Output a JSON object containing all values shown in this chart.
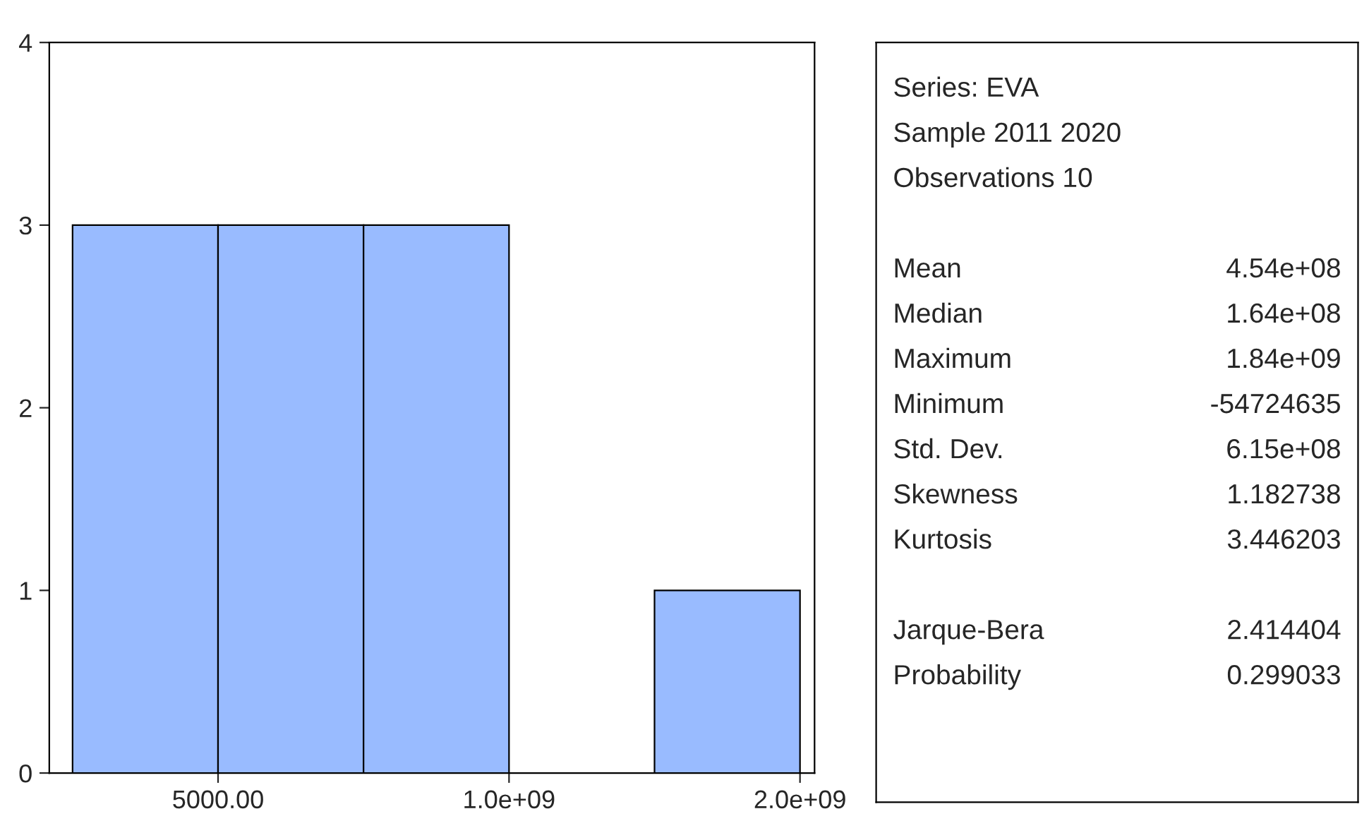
{
  "chart_data": [
    {
      "type": "histogram",
      "bins": [
        -500000000,
        5000,
        500000000,
        1000000000,
        1500000000,
        2000000000
      ],
      "values": [
        3,
        3,
        3,
        0,
        1
      ],
      "color": "#99bbff",
      "xlim": [
        -580000000,
        2050000000
      ],
      "xticks": [
        {
          "value": 5000,
          "label": "5000.00"
        },
        {
          "value": 1000000000,
          "label": "1.0e+09"
        },
        {
          "value": 2000000000,
          "label": "2.0e+09"
        }
      ],
      "ylim": [
        0,
        4
      ],
      "yticks": [
        0,
        1,
        2,
        3,
        4
      ],
      "grid": false,
      "legend": false
    },
    {
      "type": "other",
      "annotations": [
        "Series: EVA",
        "Sample 2011 2020",
        "Observations 10",
        "Mean",
        "4.54e+08",
        "Median",
        "1.64e+08",
        "Maximum",
        "1.84e+09",
        "Minimum",
        "-54724635",
        "Std. Dev.",
        "6.15e+08",
        "Skewness",
        "1.182738",
        "Kurtosis",
        "3.446203",
        "Jarque-Bera",
        "2.414404",
        "Probability",
        "0.299033"
      ]
    }
  ]
}
